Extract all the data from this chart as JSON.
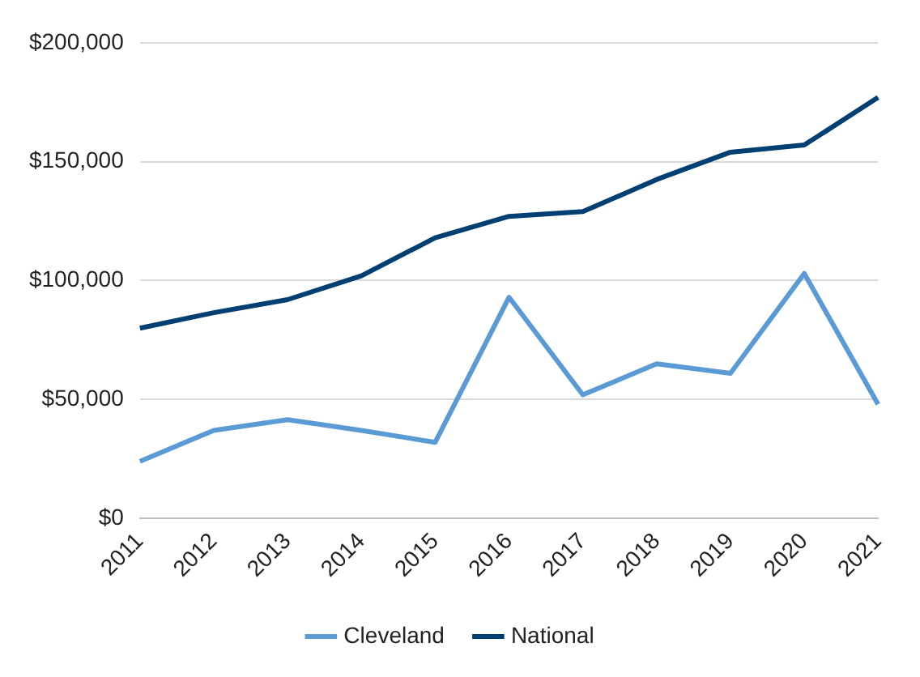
{
  "chart_data": {
    "type": "line",
    "categories": [
      "2011",
      "2012",
      "2013",
      "2014",
      "2015",
      "2016",
      "2017",
      "2018",
      "2019",
      "2020",
      "2021"
    ],
    "series": [
      {
        "name": "Cleveland",
        "color": "#5b9bd5",
        "values": [
          24000,
          37000,
          41500,
          37000,
          32000,
          93000,
          52000,
          65000,
          61000,
          103000,
          48000
        ]
      },
      {
        "name": "National",
        "color": "#003f72",
        "values": [
          80000,
          86500,
          92000,
          102000,
          118000,
          127000,
          129000,
          142500,
          154000,
          157000,
          177000
        ]
      }
    ],
    "ylim": [
      0,
      200000
    ],
    "yticks": [
      {
        "value": 0,
        "label": "$0"
      },
      {
        "value": 50000,
        "label": "$50,000"
      },
      {
        "value": 100000,
        "label": "$100,000"
      },
      {
        "value": 150000,
        "label": "$150,000"
      },
      {
        "value": 200000,
        "label": "$200,000"
      }
    ],
    "grid": "y",
    "legend": "bottom",
    "marker": "none",
    "line_style": "solid"
  }
}
